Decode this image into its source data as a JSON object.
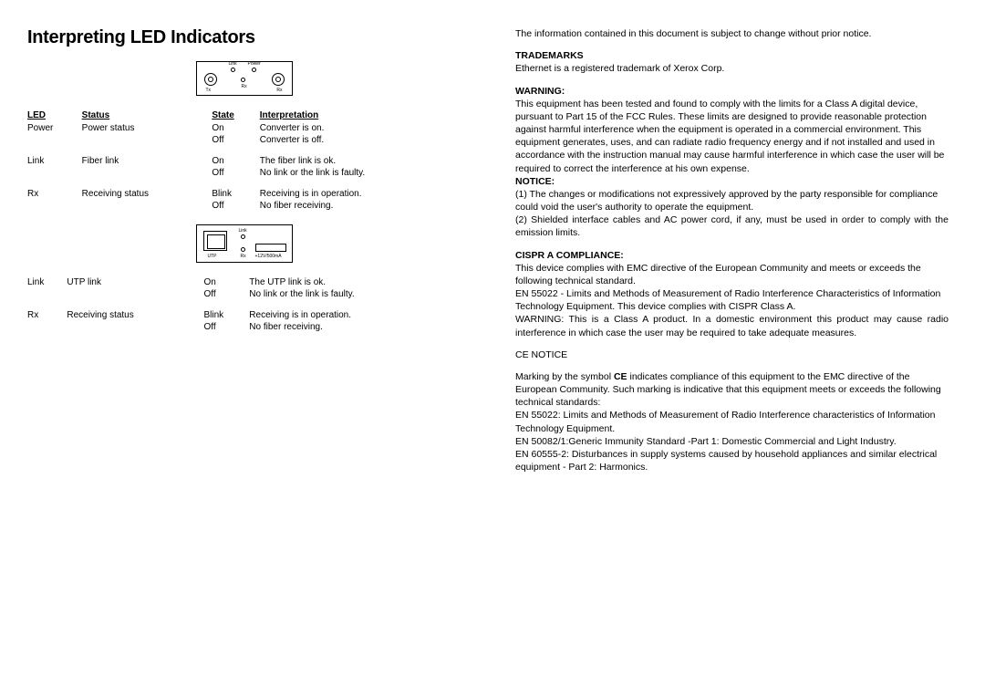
{
  "title": "Interpreting LED Indicators",
  "table": {
    "headers": {
      "led": "LED",
      "status": "Status",
      "state": "State",
      "interp": "Interpretation"
    },
    "rows1": [
      {
        "led": "Power",
        "status": "Power status",
        "state": "On",
        "interp": "Converter is on."
      },
      {
        "led": "",
        "status": "",
        "state": "Off",
        "interp": "Converter is off."
      },
      {
        "gap": true
      },
      {
        "led": "Link",
        "status": "Fiber link",
        "state": "On",
        "interp": "The fiber link is ok."
      },
      {
        "led": "",
        "status": "",
        "state": "Off",
        "interp": "No link or the link is faulty."
      },
      {
        "gap": true
      },
      {
        "led": "Rx",
        "status": "Receiving status",
        "state": "Blink",
        "interp": "Receiving is in operation."
      },
      {
        "led": "",
        "status": "",
        "state": "Off",
        "interp": "No fiber receiving."
      }
    ],
    "rows2": [
      {
        "led": "Link",
        "status": "UTP link",
        "state": "On",
        "interp": "The UTP link is ok."
      },
      {
        "led": "",
        "status": "",
        "state": "Off",
        "interp": "No link or the link is faulty."
      },
      {
        "gap": true
      },
      {
        "led": "Rx",
        "status": "Receiving status",
        "state": "Blink",
        "interp": "Receiving is in operation."
      },
      {
        "led": "",
        "status": "",
        "state": "Off",
        "interp": "No fiber receiving."
      }
    ]
  },
  "diagram1": {
    "link": "Link",
    "power": "Power",
    "rx": "Rx",
    "tx": "Tx",
    "rx2": "Rx"
  },
  "diagram2": {
    "link": "Link",
    "rx": "Rx",
    "utp": "UTP",
    "pw": "+12V/500mA"
  },
  "right": {
    "intro": "The information contained in this document is subject to change without prior notice.",
    "trademarks_h": "TRADEMARKS",
    "trademarks": "Ethernet is a registered trademark of Xerox Corp.",
    "warning_h": "WARNING:",
    "warning": "This equipment has been tested and found to comply with the limits for a Class A digital device, pursuant to Part 15 of the FCC Rules. These limits are designed to provide reasonable protection against harmful interference when the equipment is operated in a commercial environment. This equipment generates, uses, and can radiate radio frequency energy and if not installed and used in accordance with the instruction manual may cause harmful interference in which case the user will be required to correct the interference at his own expense.",
    "notice_h": "NOTICE:",
    "notice1": "(1) The changes or modifications not expressively approved by the party responsible for compliance could void the user's authority to operate the equipment.",
    "notice2": "(2) Shielded interface cables and AC power cord, if any, must be used in order to comply with the emission limits.",
    "cispr_h": "CISPR A COMPLIANCE:",
    "cispr1": "This device complies with EMC directive of the European Community and meets or exceeds the following technical standard.",
    "cispr2": "EN 55022 - Limits and Methods of Measurement of Radio Interference Characteristics of Information Technology Equipment. This device complies with CISPR Class A.",
    "cispr3": "WARNING: This is a Class A product. In a domestic environment this product may cause radio interference in which case the user may be required to take adequate measures.",
    "ce_h": "CE NOTICE",
    "ce1a": "Marking by the symbol ",
    "ce1b": "CE",
    "ce1c": " indicates compliance of this equipment to the EMC directive of the European Community. Such marking is indicative that this equipment meets or exceeds the following technical standards:",
    "ce2": "EN 55022: Limits and Methods of Measurement of Radio Interference characteristics of Information Technology Equipment.",
    "ce3": "EN 50082/1:Generic Immunity Standard -Part 1: Domestic Commercial and Light Industry.",
    "ce4": "EN 60555-2: Disturbances in supply systems caused by household appliances and similar electrical equipment - Part 2: Harmonics."
  }
}
